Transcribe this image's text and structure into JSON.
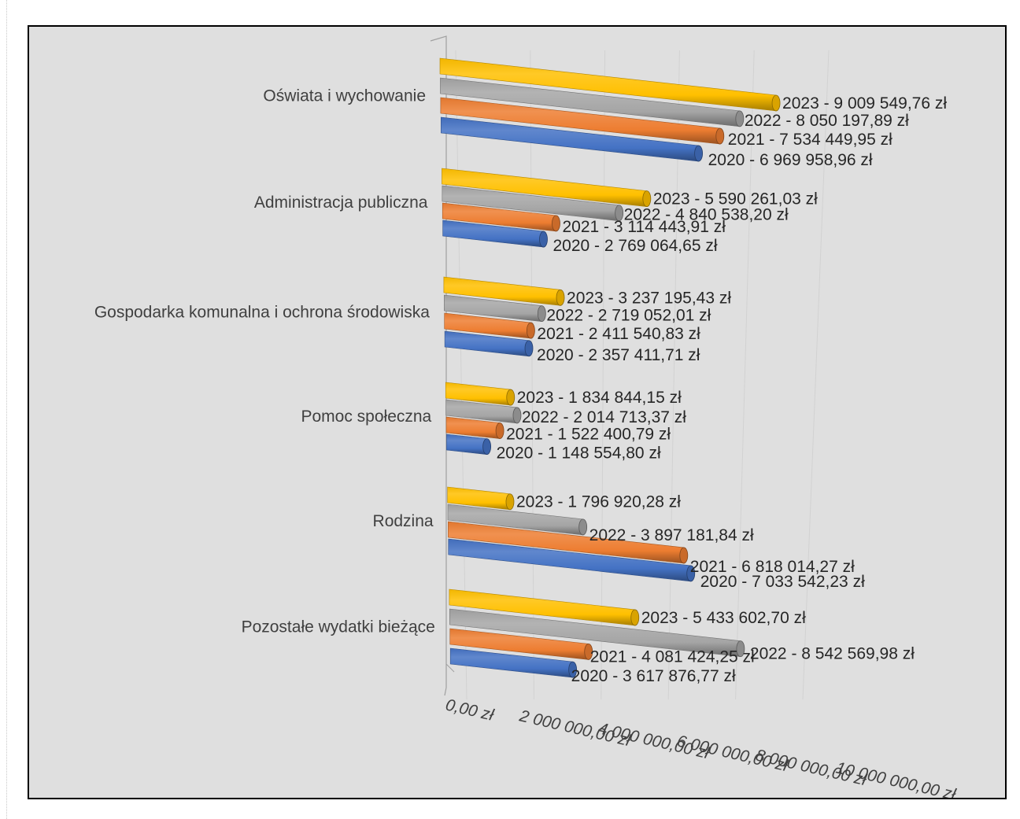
{
  "chart_data": {
    "type": "bar",
    "orientation": "horizontal",
    "style": "3d-cylinder",
    "categories": [
      "Oświata i wychowanie",
      "Administracja publiczna",
      "Gospodarka komunalna i ochrona środowiska",
      "Pomoc społeczna",
      "Rodzina",
      "Pozostałe wydatki bieżące"
    ],
    "series": [
      {
        "name": "2023",
        "color": "#ffc000",
        "values": [
          9009549.76,
          5590261.03,
          3237195.43,
          1834844.15,
          1796920.28,
          5433602.7
        ],
        "labels": [
          "2023 - 9 009 549,76 zł",
          "2023 - 5 590 261,03 zł",
          "2023 - 3 237 195,43 zł",
          "2023 - 1 834 844,15 zł",
          "2023 - 1 796 920,28 zł",
          "2023 - 5 433 602,70 zł"
        ]
      },
      {
        "name": "2022",
        "color": "#a5a5a5",
        "values": [
          8050197.89,
          4840538.2,
          2719052.01,
          2014713.37,
          3897181.84,
          8542569.98
        ],
        "labels": [
          "2022 - 8 050 197,89 zł",
          "2022 - 4 840 538,20 zł",
          "2022 - 2 719 052,01 zł",
          "2022 - 2 014 713,37 zł",
          "2022 - 3 897 181,84 zł",
          "2022 - 8 542 569,98 zł"
        ]
      },
      {
        "name": "2021",
        "color": "#ed7d31",
        "values": [
          7534449.95,
          3114443.91,
          2411540.83,
          1522400.79,
          6818014.27,
          4081424.25
        ],
        "labels": [
          "2021 - 7 534 449,95 zł",
          "2021 - 3 114 443,91 zł",
          "2021 - 2 411 540,83 zł",
          "2021 - 1 522 400,79 zł",
          "2021 - 6 818 014,27 zł",
          "2021 - 4 081 424,25 zł"
        ]
      },
      {
        "name": "2020",
        "color": "#4472c4",
        "values": [
          6969958.96,
          2769064.65,
          2357411.71,
          1148554.8,
          7033542.23,
          3617876.77
        ],
        "labels": [
          "2020 - 6 969 958,96 zł",
          "2020 - 2 769 064,65 zł",
          "2020 - 2 357 411,71 zł",
          "2020 - 1 148 554,80 zł",
          "2020 - 7 033 542,23 zł",
          "2020 - 3 617 876,77 zł"
        ]
      }
    ],
    "xlim": [
      0,
      10000000
    ],
    "x_ticks": [
      {
        "value": 0,
        "label": "0,00 zł"
      },
      {
        "value": 2000000,
        "label": "2 000 000,00 zł"
      },
      {
        "value": 4000000,
        "label": "4 000 000,00 zł"
      },
      {
        "value": 6000000,
        "label": "6 000 000,00 zł"
      },
      {
        "value": 8000000,
        "label": "8 000 000,00 zł"
      },
      {
        "value": 10000000,
        "label": "10 000 000,00 zł"
      }
    ],
    "grid": true,
    "legend": "none",
    "title": "",
    "xlabel": "",
    "ylabel": "",
    "background_color": "#dfdfdf"
  }
}
